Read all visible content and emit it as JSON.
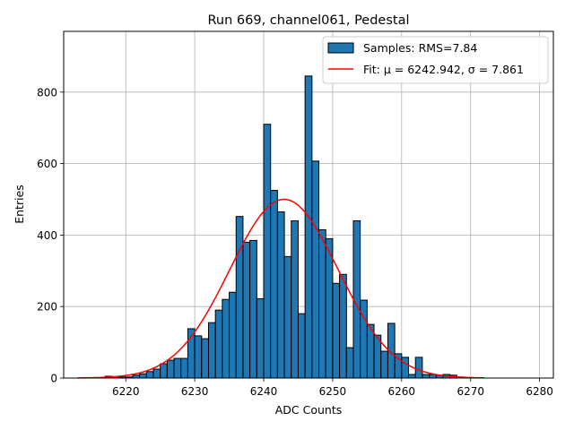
{
  "chart_data": {
    "type": "bar",
    "title": "Run 669, channel061, Pedestal",
    "xlabel": "ADC Counts",
    "ylabel": "Entries",
    "xlim": [
      6211,
      6282
    ],
    "ylim": [
      0,
      970
    ],
    "xticks": [
      6220,
      6230,
      6240,
      6250,
      6260,
      6270,
      6280
    ],
    "yticks": [
      0,
      200,
      400,
      600,
      800
    ],
    "grid": true,
    "legend_position": "top-right",
    "bin_width": 1,
    "histogram": {
      "name": "Samples: RMS=7.84",
      "color": "#1f77b4",
      "bins": [
        6214,
        6215,
        6216,
        6217,
        6218,
        6219,
        6220,
        6221,
        6222,
        6223,
        6224,
        6225,
        6226,
        6227,
        6228,
        6229,
        6230,
        6231,
        6232,
        6233,
        6234,
        6235,
        6236,
        6237,
        6238,
        6239,
        6240,
        6241,
        6242,
        6243,
        6244,
        6245,
        6246,
        6247,
        6248,
        6249,
        6250,
        6251,
        6252,
        6253,
        6254,
        6255,
        6256,
        6257,
        6258,
        6259,
        6260,
        6261,
        6262,
        6263,
        6264,
        6265,
        6266,
        6267,
        6268,
        6269,
        6270,
        6271
      ],
      "values": [
        0,
        0,
        0,
        5,
        3,
        3,
        3,
        8,
        12,
        18,
        25,
        40,
        50,
        55,
        55,
        138,
        118,
        110,
        155,
        190,
        220,
        240,
        452,
        380,
        385,
        222,
        710,
        525,
        465,
        340,
        440,
        180,
        845,
        607,
        415,
        390,
        265,
        290,
        85,
        440,
        218,
        150,
        120,
        75,
        153,
        68,
        58,
        10,
        58,
        10,
        10,
        8,
        10,
        8,
        3,
        0,
        0,
        0
      ]
    },
    "fit": {
      "name": "Fit: μ = 6242.942, σ = 7.861",
      "color": "#ff0000",
      "mu": 6242.942,
      "sigma": 7.861,
      "amplitude": 500,
      "x_range": [
        6213,
        6272
      ]
    }
  }
}
